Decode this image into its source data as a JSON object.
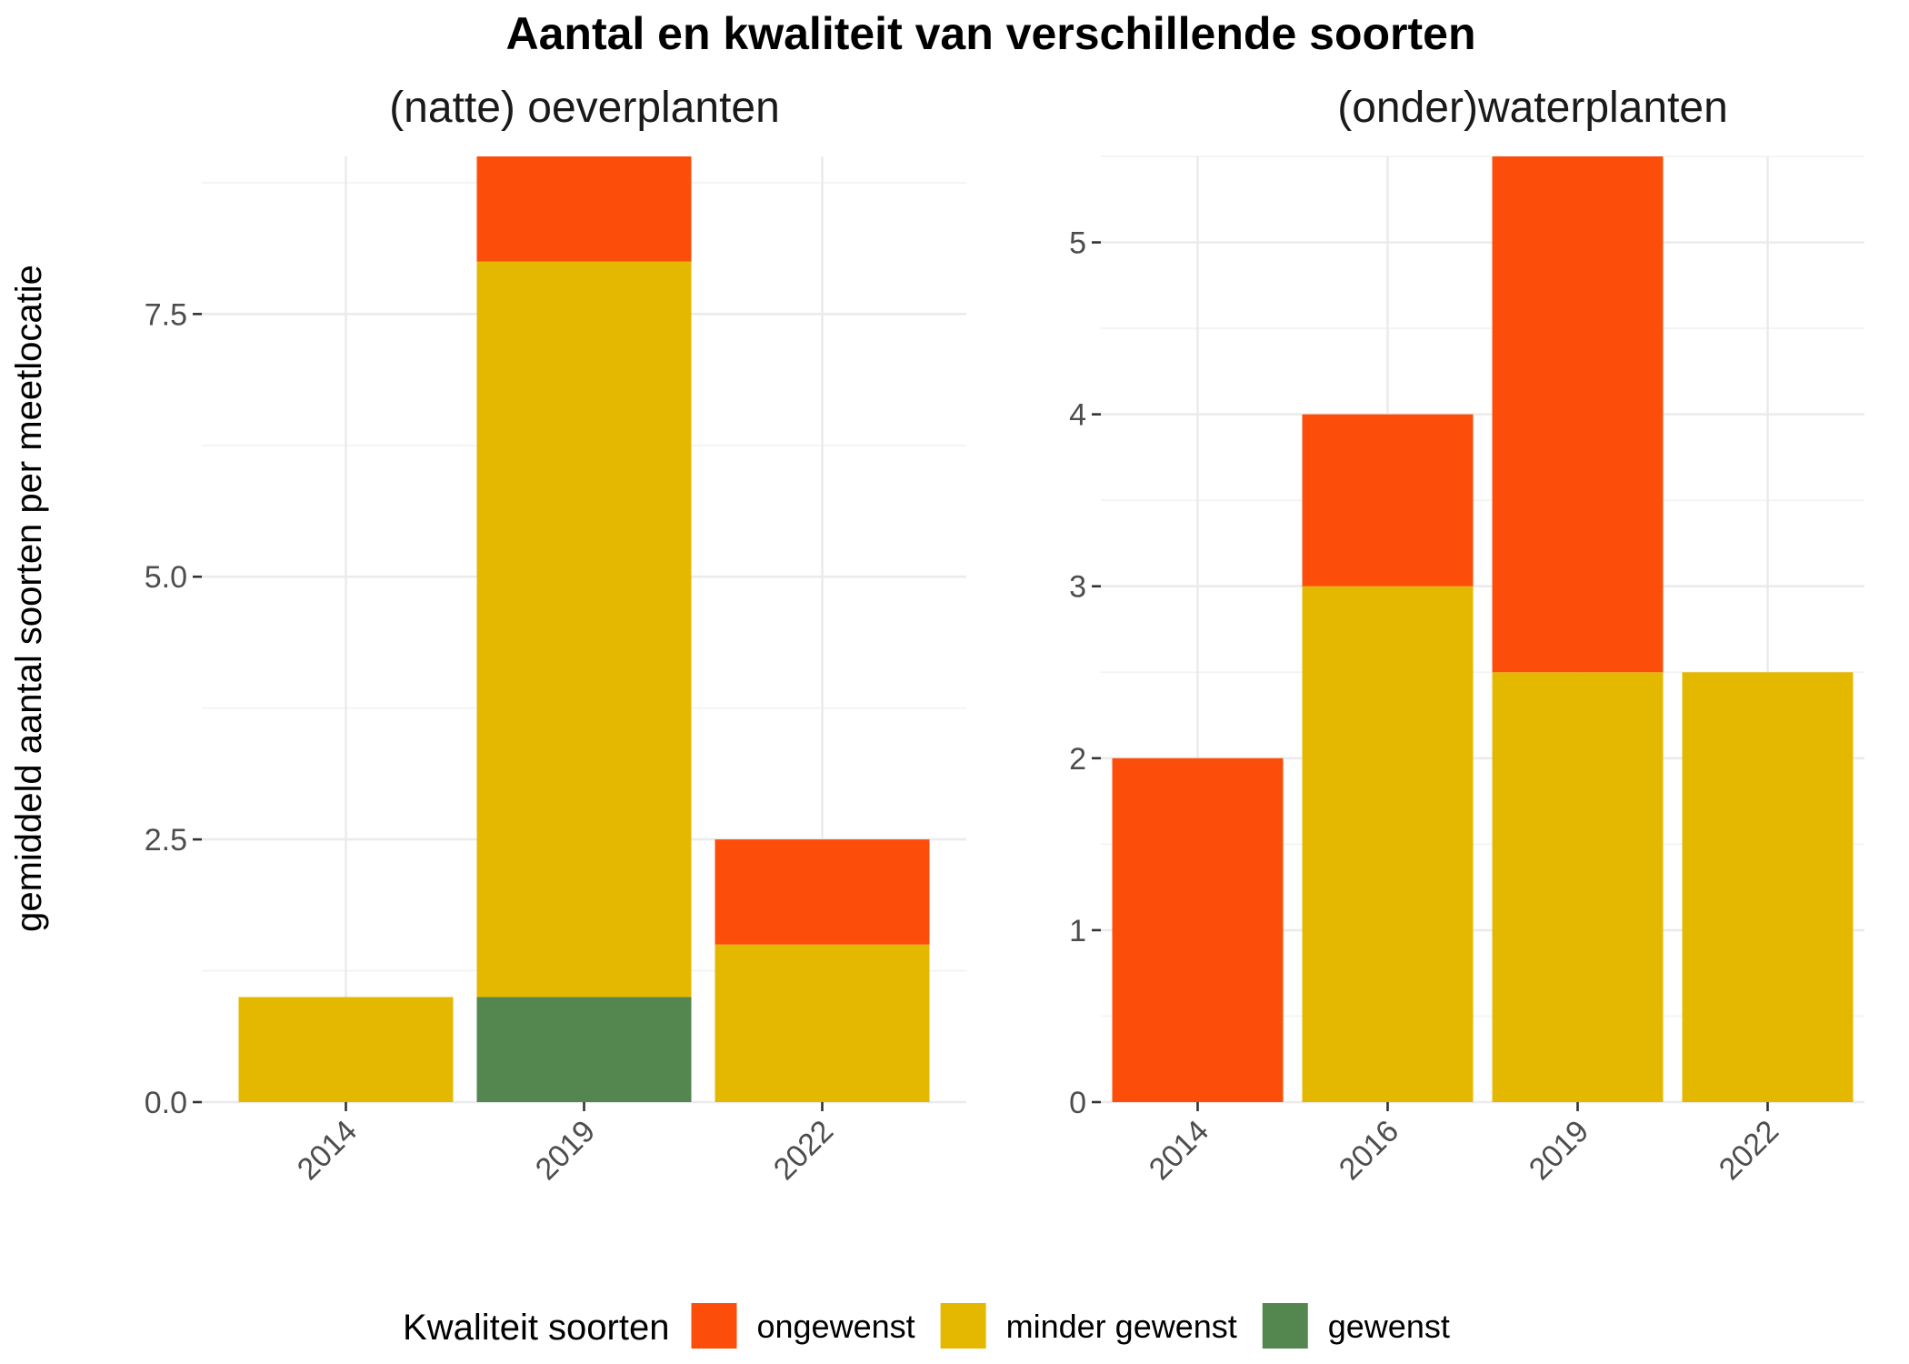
{
  "chart_data": {
    "type": "bar",
    "stacked": true,
    "title": "Aantal en kwaliteit van verschillende soorten",
    "ylabel": "gemiddeld aantal soorten per meetlocatie",
    "colors": {
      "ongewenst": "#fc4e0a",
      "minder gewenst": "#e5b800",
      "gewenst": "#53874f"
    },
    "legend": {
      "title": "Kwaliteit soorten",
      "position": "bottom",
      "entries": [
        "ongewenst",
        "minder gewenst",
        "gewenst"
      ]
    },
    "panels": [
      {
        "title": "(natte) oeverplanten",
        "categories": [
          "2014",
          "2019",
          "2022"
        ],
        "ylim": [
          0,
          9
        ],
        "yticks": [
          0,
          2.5,
          5,
          7.5
        ],
        "ytick_labels": [
          "0.0",
          "2.5",
          "5.0",
          "7.5"
        ],
        "yminor": [
          1.25,
          3.75,
          6.25,
          8.75
        ],
        "series": [
          {
            "name": "gewenst",
            "values": [
              0,
              1,
              0
            ]
          },
          {
            "name": "minder gewenst",
            "values": [
              1,
              7,
              1.5
            ]
          },
          {
            "name": "ongewenst",
            "values": [
              0,
              1,
              1
            ]
          }
        ]
      },
      {
        "title": "(onder)waterplanten",
        "categories": [
          "2014",
          "2016",
          "2019",
          "2022"
        ],
        "ylim": [
          0,
          5.5
        ],
        "yticks": [
          0,
          1,
          2,
          3,
          4,
          5
        ],
        "ytick_labels": [
          "0",
          "1",
          "2",
          "3",
          "4",
          "5"
        ],
        "yminor": [
          0.5,
          1.5,
          2.5,
          3.5,
          4.5,
          5.5
        ],
        "series": [
          {
            "name": "gewenst",
            "values": [
              0,
              0,
              0,
              0
            ]
          },
          {
            "name": "minder gewenst",
            "values": [
              0,
              3,
              2.5,
              2.5
            ]
          },
          {
            "name": "ongewenst",
            "values": [
              2,
              1,
              3,
              0
            ]
          }
        ]
      }
    ]
  }
}
